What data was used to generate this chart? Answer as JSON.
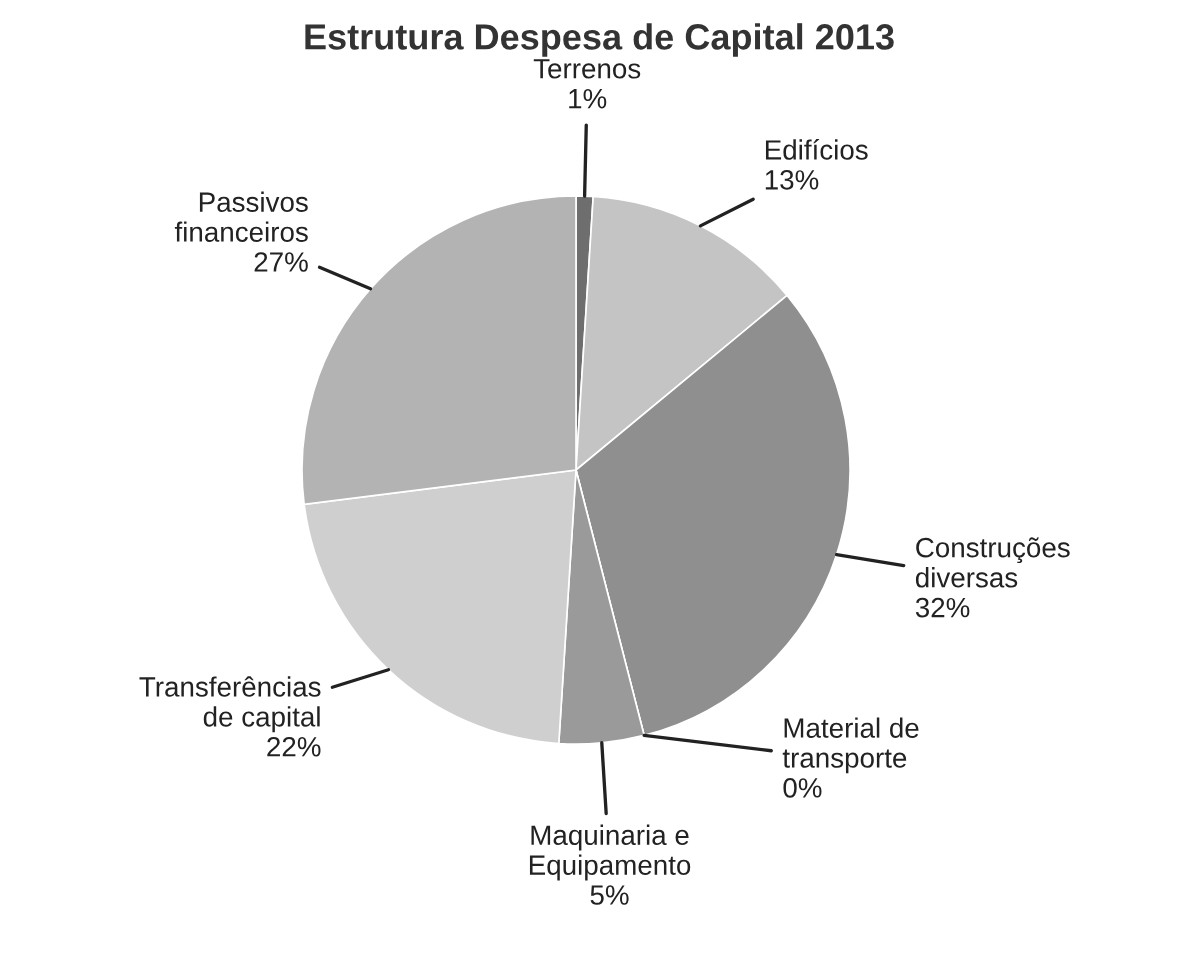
{
  "chart_data": {
    "type": "pie",
    "title": "Estrutura Despesa de Capital 2013",
    "categories": [
      "Terrenos",
      "Edifícios",
      "Construções diversas",
      "Material de transporte",
      "Maquinaria e Equipamento",
      "Transferências de capital",
      "Passivos financeiros"
    ],
    "values": [
      1,
      13,
      32,
      0,
      5,
      22,
      27
    ],
    "value_labels": [
      "1%",
      "13%",
      "32%",
      "0%",
      "5%",
      "22%",
      "27%"
    ],
    "colors": [
      "#6e6e6e",
      "#c4c4c4",
      "#8f8f8f",
      "#999999",
      "#9a9a9a",
      "#cfcfcf",
      "#b3b3b3"
    ]
  }
}
